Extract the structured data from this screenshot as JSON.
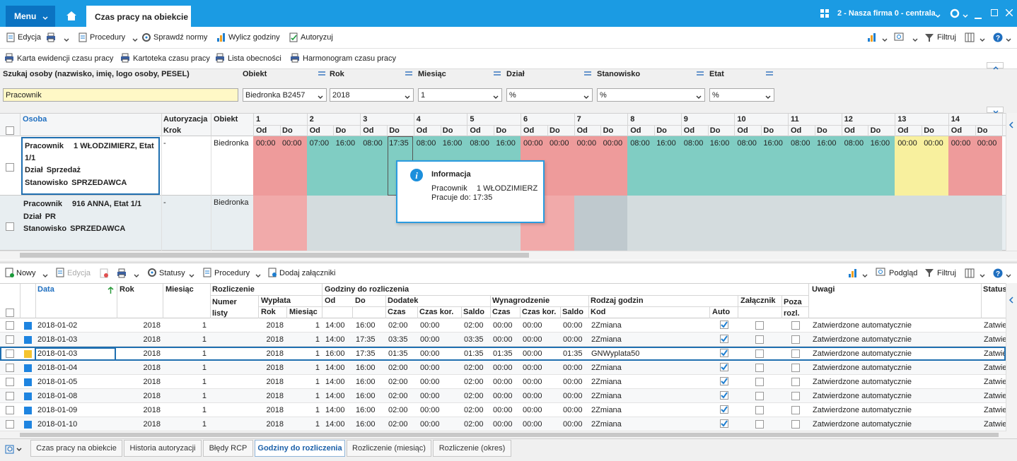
{
  "header": {
    "menu": "Menu",
    "tab": "Czas pracy na obiekcie",
    "company": "2 - Nasza firma 0 - centrala"
  },
  "toolbar": {
    "left": [
      "Edycja",
      "Procedury",
      "Sprawdź normy",
      "Wylicz godziny",
      "Autoryzuj"
    ],
    "right": [
      "Filtruj"
    ]
  },
  "reports": [
    "Karta ewidencji czasu pracy",
    "Kartoteka czasu pracy",
    "Lista obecności",
    "Harmonogram czasu pracy"
  ],
  "filters": [
    {
      "label": "Szukaj osoby (nazwisko, imię, logo osoby, PESEL)",
      "value": "Pracownik"
    },
    {
      "label": "Obiekt",
      "value": "Biedronka B2457"
    },
    {
      "label": "Rok",
      "value": "2018"
    },
    {
      "label": "Miesiąc",
      "value": "1"
    },
    {
      "label": "Dział",
      "value": "%"
    },
    {
      "label": "Stanowisko",
      "value": "%"
    },
    {
      "label": "Etat",
      "value": "%"
    }
  ],
  "schedule": {
    "columns": {
      "person": "Osoba",
      "auth": "Autoryzacja",
      "step": "Krok",
      "object": "Obiekt",
      "from": "Od",
      "to": "Do"
    },
    "days": [
      "1",
      "2",
      "3",
      "4",
      "5",
      "6",
      "7",
      "8",
      "9",
      "10",
      "11",
      "12",
      "13",
      "14"
    ],
    "rows": [
      {
        "person": [
          [
            "Pracownik",
            "1 WŁODZIMIERZ, Etat 1/1"
          ],
          [
            "Dział",
            "Sprzedaż"
          ],
          [
            "Stanowisko",
            "SPRZEDAWCA"
          ]
        ],
        "auth": "-",
        "object": "Biedronka",
        "cells": [
          {
            "from": "00:00",
            "to": "00:00",
            "color": "#ee9b9b"
          },
          {
            "from": "07:00",
            "to": "16:00",
            "color": "#80cdc3"
          },
          {
            "from": "08:00",
            "to": "17:35",
            "color": "#80cdc3"
          },
          {
            "from": "08:00",
            "to": "16:00",
            "color": "#80cdc3"
          },
          {
            "from": "08:00",
            "to": "16:00",
            "color": "#80cdc3"
          },
          {
            "from": "00:00",
            "to": "00:00",
            "color": "#ee9b9b"
          },
          {
            "from": "00:00",
            "to": "00:00",
            "color": "#ee9b9b"
          },
          {
            "from": "08:00",
            "to": "16:00",
            "color": "#80cdc3"
          },
          {
            "from": "08:00",
            "to": "16:00",
            "color": "#80cdc3"
          },
          {
            "from": "08:00",
            "to": "16:00",
            "color": "#80cdc3"
          },
          {
            "from": "08:00",
            "to": "16:00",
            "color": "#80cdc3"
          },
          {
            "from": "08:00",
            "to": "16:00",
            "color": "#80cdc3"
          },
          {
            "from": "00:00",
            "to": "00:00",
            "color": "#f8f09e"
          },
          {
            "from": "00:00",
            "to": "00:00",
            "color": "#ee9b9b"
          }
        ]
      },
      {
        "person": [
          [
            "Pracownik",
            "916 ANNA, Etat 1/1"
          ],
          [
            "Dział",
            "PR"
          ],
          [
            "Stanowisko",
            "SPRZEDAWCA"
          ]
        ],
        "auth": "-",
        "object": "Biedronka",
        "cells": [
          {
            "color": "#f1aaaa"
          },
          {
            "color": "#d4dcde"
          },
          {
            "color": "#d4dcde"
          },
          {
            "color": "#d4dcde"
          },
          {
            "color": "#d4dcde"
          },
          {
            "color": "#f1aaaa"
          },
          {
            "color": "#bfc9ce"
          },
          {
            "color": "#d4dcde"
          },
          {
            "color": "#d4dcde"
          },
          {
            "color": "#d4dcde"
          },
          {
            "color": "#d4dcde"
          },
          {
            "color": "#d4dcde"
          },
          {
            "color": "#d4dcde"
          },
          {
            "color": "#d4dcde"
          }
        ]
      }
    ]
  },
  "tooltip": {
    "title": "Informacja",
    "label": "Pracownik",
    "person": "1 WŁODZIMIERZ",
    "text": "Pracuje do: 17:35"
  },
  "lower_toolbar": {
    "left": [
      "Nowy",
      "Edycja",
      "Statusy",
      "Procedury",
      "Dodaj załączniki"
    ],
    "right": [
      "Podgląd",
      "Filtruj"
    ]
  },
  "table": {
    "headers": {
      "date": "Data",
      "year": "Rok",
      "month": "Miesiąc",
      "settlement": "Rozliczenie",
      "listNo": "Numer listy",
      "payout": "Wypłata",
      "payYear": "Rok",
      "payMonth": "Miesiąc",
      "hours": "Godziny do rozliczenia",
      "from": "Od",
      "to": "Do",
      "addition": "Dodatek",
      "addTime": "Czas",
      "addCorr": "Czas kor.",
      "addBalance": "Saldo",
      "pay": "Wynagrodzenie",
      "payTime": "Czas",
      "payCorr": "Czas kor.",
      "payBalance": "Saldo",
      "kind": "Rodzaj godzin",
      "code": "Kod",
      "auto": "Auto",
      "attachment": "Załącznik",
      "outside": "Poza rozl.",
      "notes": "Uwagi",
      "status": "Status"
    },
    "rows": [
      {
        "marker": "#1e84e0",
        "date": "2018-01-02",
        "year": 2018,
        "month": 1,
        "payYear": 2018,
        "payMonth": 1,
        "from": "14:00",
        "to": "16:00",
        "addTime": "02:00",
        "addCorr": "00:00",
        "addBalance": "02:00",
        "payTime": "00:00",
        "payCorr": "00:00",
        "payBalance": "00:00",
        "code": "2Zmiana",
        "auto": true,
        "note": "Zatwierdzone automatycznie",
        "status": "Zatwie"
      },
      {
        "marker": "#1e84e0",
        "date": "2018-01-03",
        "year": 2018,
        "month": 1,
        "payYear": 2018,
        "payMonth": 1,
        "from": "14:00",
        "to": "17:35",
        "addTime": "03:35",
        "addCorr": "00:00",
        "addBalance": "03:35",
        "payTime": "00:00",
        "payCorr": "00:00",
        "payBalance": "00:00",
        "code": "2Zmiana",
        "auto": true,
        "note": "Zatwierdzone automatycznie",
        "status": "Zatwie"
      },
      {
        "marker": "#f4c430",
        "date": "2018-01-03",
        "year": 2018,
        "month": 1,
        "payYear": 2018,
        "payMonth": 1,
        "from": "16:00",
        "to": "17:35",
        "addTime": "01:35",
        "addCorr": "00:00",
        "addBalance": "01:35",
        "payTime": "01:35",
        "payCorr": "00:00",
        "payBalance": "01:35",
        "code": "GNWyplata50",
        "auto": true,
        "note": "Zatwierdzone automatycznie",
        "status": "Zatwie"
      },
      {
        "marker": "#1e84e0",
        "date": "2018-01-04",
        "year": 2018,
        "month": 1,
        "payYear": 2018,
        "payMonth": 1,
        "from": "14:00",
        "to": "16:00",
        "addTime": "02:00",
        "addCorr": "00:00",
        "addBalance": "02:00",
        "payTime": "00:00",
        "payCorr": "00:00",
        "payBalance": "00:00",
        "code": "2Zmiana",
        "auto": true,
        "note": "Zatwierdzone automatycznie",
        "status": "Zatwie"
      },
      {
        "marker": "#1e84e0",
        "date": "2018-01-05",
        "year": 2018,
        "month": 1,
        "payYear": 2018,
        "payMonth": 1,
        "from": "14:00",
        "to": "16:00",
        "addTime": "02:00",
        "addCorr": "00:00",
        "addBalance": "02:00",
        "payTime": "00:00",
        "payCorr": "00:00",
        "payBalance": "00:00",
        "code": "2Zmiana",
        "auto": true,
        "note": "Zatwierdzone automatycznie",
        "status": "Zatwie"
      },
      {
        "marker": "#1e84e0",
        "date": "2018-01-08",
        "year": 2018,
        "month": 1,
        "payYear": 2018,
        "payMonth": 1,
        "from": "14:00",
        "to": "16:00",
        "addTime": "02:00",
        "addCorr": "00:00",
        "addBalance": "02:00",
        "payTime": "00:00",
        "payCorr": "00:00",
        "payBalance": "00:00",
        "code": "2Zmiana",
        "auto": true,
        "note": "Zatwierdzone automatycznie",
        "status": "Zatwie"
      },
      {
        "marker": "#1e84e0",
        "date": "2018-01-09",
        "year": 2018,
        "month": 1,
        "payYear": 2018,
        "payMonth": 1,
        "from": "14:00",
        "to": "16:00",
        "addTime": "02:00",
        "addCorr": "00:00",
        "addBalance": "02:00",
        "payTime": "00:00",
        "payCorr": "00:00",
        "payBalance": "00:00",
        "code": "2Zmiana",
        "auto": true,
        "note": "Zatwierdzone automatycznie",
        "status": "Zatwie"
      },
      {
        "marker": "#1e84e0",
        "date": "2018-01-10",
        "year": 2018,
        "month": 1,
        "payYear": 2018,
        "payMonth": 1,
        "from": "14:00",
        "to": "16:00",
        "addTime": "02:00",
        "addCorr": "00:00",
        "addBalance": "02:00",
        "payTime": "00:00",
        "payCorr": "00:00",
        "payBalance": "00:00",
        "code": "2Zmiana",
        "auto": true,
        "note": "Zatwierdzone automatycznie",
        "status": "Zatwie"
      }
    ]
  },
  "tabs": {
    "items": [
      "Czas pracy na obiekcie",
      "Historia autoryzacji",
      "Błędy RCP",
      "Godziny do rozliczenia",
      "Rozliczenie (miesiąc)",
      "Rozliczenie (okres)"
    ],
    "active": 3
  }
}
